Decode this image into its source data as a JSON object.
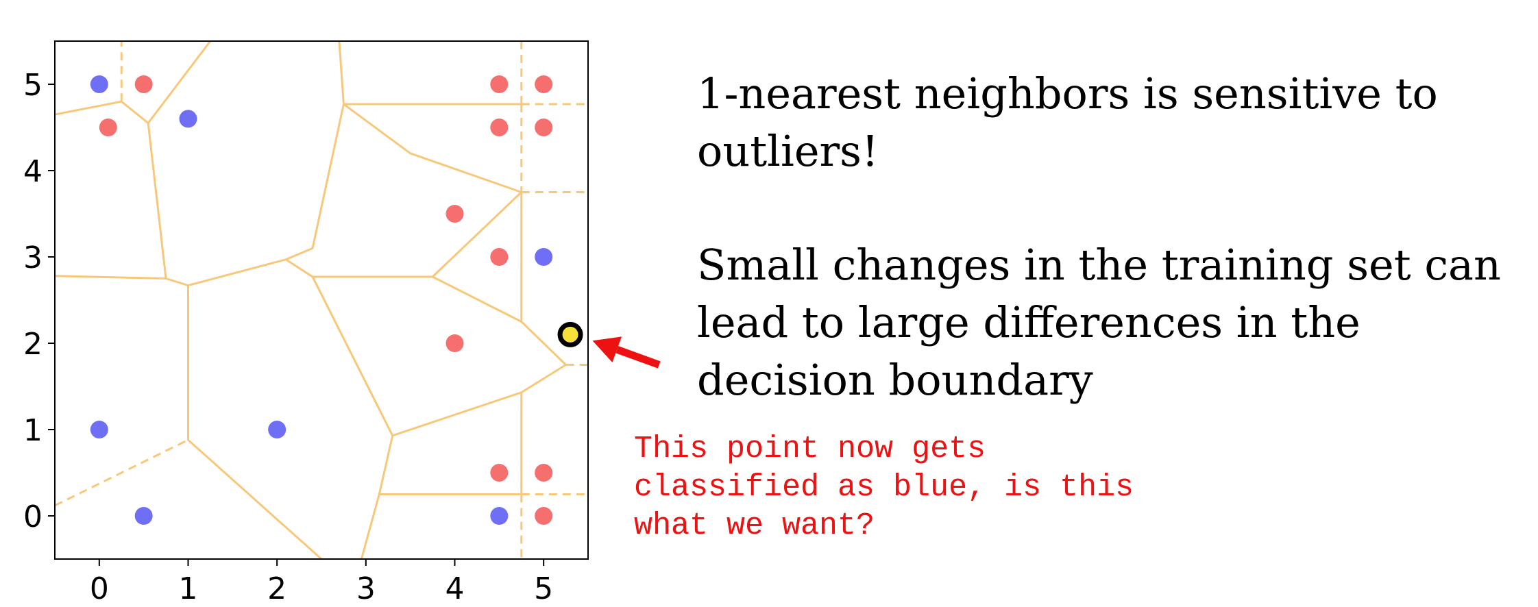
{
  "chart_data": {
    "type": "scatter",
    "title": "",
    "xlabel": "",
    "ylabel": "",
    "xlim": [
      -0.5,
      5.5
    ],
    "ylim": [
      -0.5,
      5.5
    ],
    "xticks": [
      "0",
      "1",
      "2",
      "3",
      "4",
      "5"
    ],
    "yticks": [
      "0",
      "1",
      "2",
      "3",
      "4",
      "5"
    ],
    "grid": false,
    "series": [
      {
        "color": "#6f6ff5",
        "points": [
          [
            0,
            5
          ],
          [
            1,
            4.6
          ],
          [
            0,
            1
          ],
          [
            2,
            1
          ],
          [
            0.5,
            0
          ],
          [
            4.5,
            0
          ],
          [
            5,
            3
          ]
        ]
      },
      {
        "color": "#f56f6f",
        "points": [
          [
            0.5,
            5
          ],
          [
            0.1,
            4.5
          ],
          [
            4.5,
            5
          ],
          [
            5,
            5
          ],
          [
            4.5,
            4.5
          ],
          [
            5,
            4.5
          ],
          [
            4,
            3.5
          ],
          [
            4.5,
            3
          ],
          [
            4,
            2
          ],
          [
            4.5,
            0.5
          ],
          [
            5,
            0.5
          ],
          [
            5,
            0
          ]
        ]
      },
      {
        "color": "#f8e03a",
        "edge": "#000000",
        "points": [
          [
            5.3,
            2.1
          ]
        ]
      }
    ],
    "boundaries": {
      "color": "#f8c87a",
      "solid": [
        [
          [
            -0.5,
            4.65
          ],
          [
            0.25,
            4.8
          ],
          [
            0.55,
            4.55
          ],
          [
            1.25,
            5.5
          ]
        ],
        [
          [
            0.55,
            4.55
          ],
          [
            0.75,
            2.75
          ],
          [
            1,
            2.67
          ],
          [
            2.1,
            2.97
          ],
          [
            2.4,
            3.1
          ],
          [
            2.75,
            4.77
          ],
          [
            3.5,
            4.2
          ],
          [
            4.75,
            3.75
          ],
          [
            4.75,
            2.25
          ],
          [
            5.25,
            1.75
          ]
        ],
        [
          [
            2.75,
            4.77
          ],
          [
            2.7,
            5.5
          ]
        ],
        [
          [
            2.75,
            4.77
          ],
          [
            4.75,
            4.77
          ]
        ],
        [
          [
            -0.5,
            2.78
          ],
          [
            0.75,
            2.75
          ]
        ],
        [
          [
            1,
            2.67
          ],
          [
            1,
            0.88
          ],
          [
            2.5,
            -0.5
          ]
        ],
        [
          [
            2.1,
            2.97
          ],
          [
            2.4,
            2.77
          ],
          [
            3.75,
            2.77
          ],
          [
            4.75,
            3.75
          ]
        ],
        [
          [
            3.75,
            2.77
          ],
          [
            4.75,
            2.25
          ]
        ],
        [
          [
            2.4,
            2.77
          ],
          [
            3.3,
            0.93
          ],
          [
            4.75,
            1.43
          ],
          [
            5.25,
            1.75
          ]
        ],
        [
          [
            3.3,
            0.93
          ],
          [
            3.15,
            0.25
          ],
          [
            2.95,
            -0.5
          ]
        ],
        [
          [
            3.15,
            0.25
          ],
          [
            4.75,
            0.25
          ]
        ],
        [
          [
            4.75,
            1.43
          ],
          [
            4.75,
            0.25
          ]
        ]
      ],
      "dashed": [
        [
          [
            0.25,
            4.8
          ],
          [
            0.25,
            5.5
          ]
        ],
        [
          [
            4.75,
            5.5
          ],
          [
            4.75,
            4.77
          ]
        ],
        [
          [
            4.75,
            4.77
          ],
          [
            5.5,
            4.77
          ]
        ],
        [
          [
            4.75,
            4.77
          ],
          [
            4.75,
            3.75
          ]
        ],
        [
          [
            4.75,
            3.75
          ],
          [
            5.5,
            3.75
          ]
        ],
        [
          [
            5.25,
            1.75
          ],
          [
            5.5,
            1.75
          ]
        ],
        [
          [
            -0.5,
            0.12
          ],
          [
            1,
            0.88
          ]
        ],
        [
          [
            4.75,
            0.25
          ],
          [
            4.75,
            -0.5
          ]
        ],
        [
          [
            4.75,
            0.25
          ],
          [
            5.5,
            0.25
          ]
        ]
      ]
    },
    "annotation": {
      "color": "#ee1111",
      "from": [
        6.3,
        1.75
      ],
      "to": [
        5.55,
        2.03
      ]
    }
  },
  "text": {
    "line1": "1-nearest neighbors is sensitive to outliers!",
    "line2": "Small changes in the training set can lead to large differences in the decision boundary",
    "note": [
      "This point now gets",
      "classified as blue, is this",
      "what we want?"
    ]
  }
}
